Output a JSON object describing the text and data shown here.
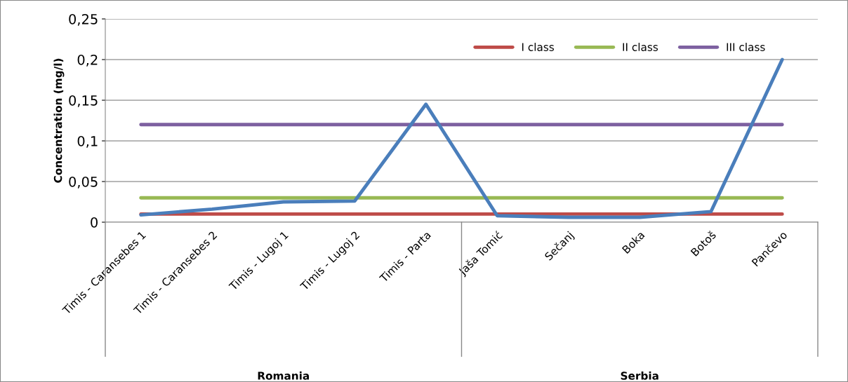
{
  "chart_data": {
    "type": "line",
    "ylabel": "Concentration (mg/l)",
    "categories": [
      "Timis - Caransebes 1",
      "Timis - Caransebes 2",
      "Timis - Lugoj 1",
      "Timis - Lugoj 2",
      "Timis - Parta",
      "Jaša Tomić",
      "Sečanj",
      "Boka",
      "Botoš",
      "Pančevo"
    ],
    "series": [
      {
        "color": "#4a7ebb",
        "values": [
          0.009,
          0.016,
          0.025,
          0.026,
          0.145,
          0.008,
          0.006,
          0.006,
          0.013,
          0.2
        ]
      },
      {
        "name": "I class",
        "color": "#be4b48",
        "values": [
          0.01,
          0.01,
          0.01,
          0.01,
          0.01,
          0.01,
          0.01,
          0.01,
          0.01,
          0.01
        ]
      },
      {
        "name": "II class",
        "color": "#98b954",
        "values": [
          0.03,
          0.03,
          0.03,
          0.03,
          0.03,
          0.03,
          0.03,
          0.03,
          0.03,
          0.03
        ]
      },
      {
        "name": "III class",
        "color": "#7d60a0",
        "values": [
          0.12,
          0.12,
          0.12,
          0.12,
          0.12,
          0.12,
          0.12,
          0.12,
          0.12,
          0.12
        ]
      }
    ],
    "ylim": [
      0,
      0.25
    ],
    "yticks": [
      0,
      {
        "value": 0.05,
        "label": "0,05"
      },
      {
        "value": 0.1,
        "label": "0,1"
      },
      {
        "value": 0.15,
        "label": "0,15"
      },
      {
        "value": 0.2,
        "label": "0,2"
      },
      {
        "value": 0.25,
        "label": "0,25"
      }
    ],
    "annotations": [
      "Romania",
      "Serbia"
    ],
    "grid": "y",
    "legend": "top right",
    "marker": "none",
    "line_style": "solid"
  }
}
